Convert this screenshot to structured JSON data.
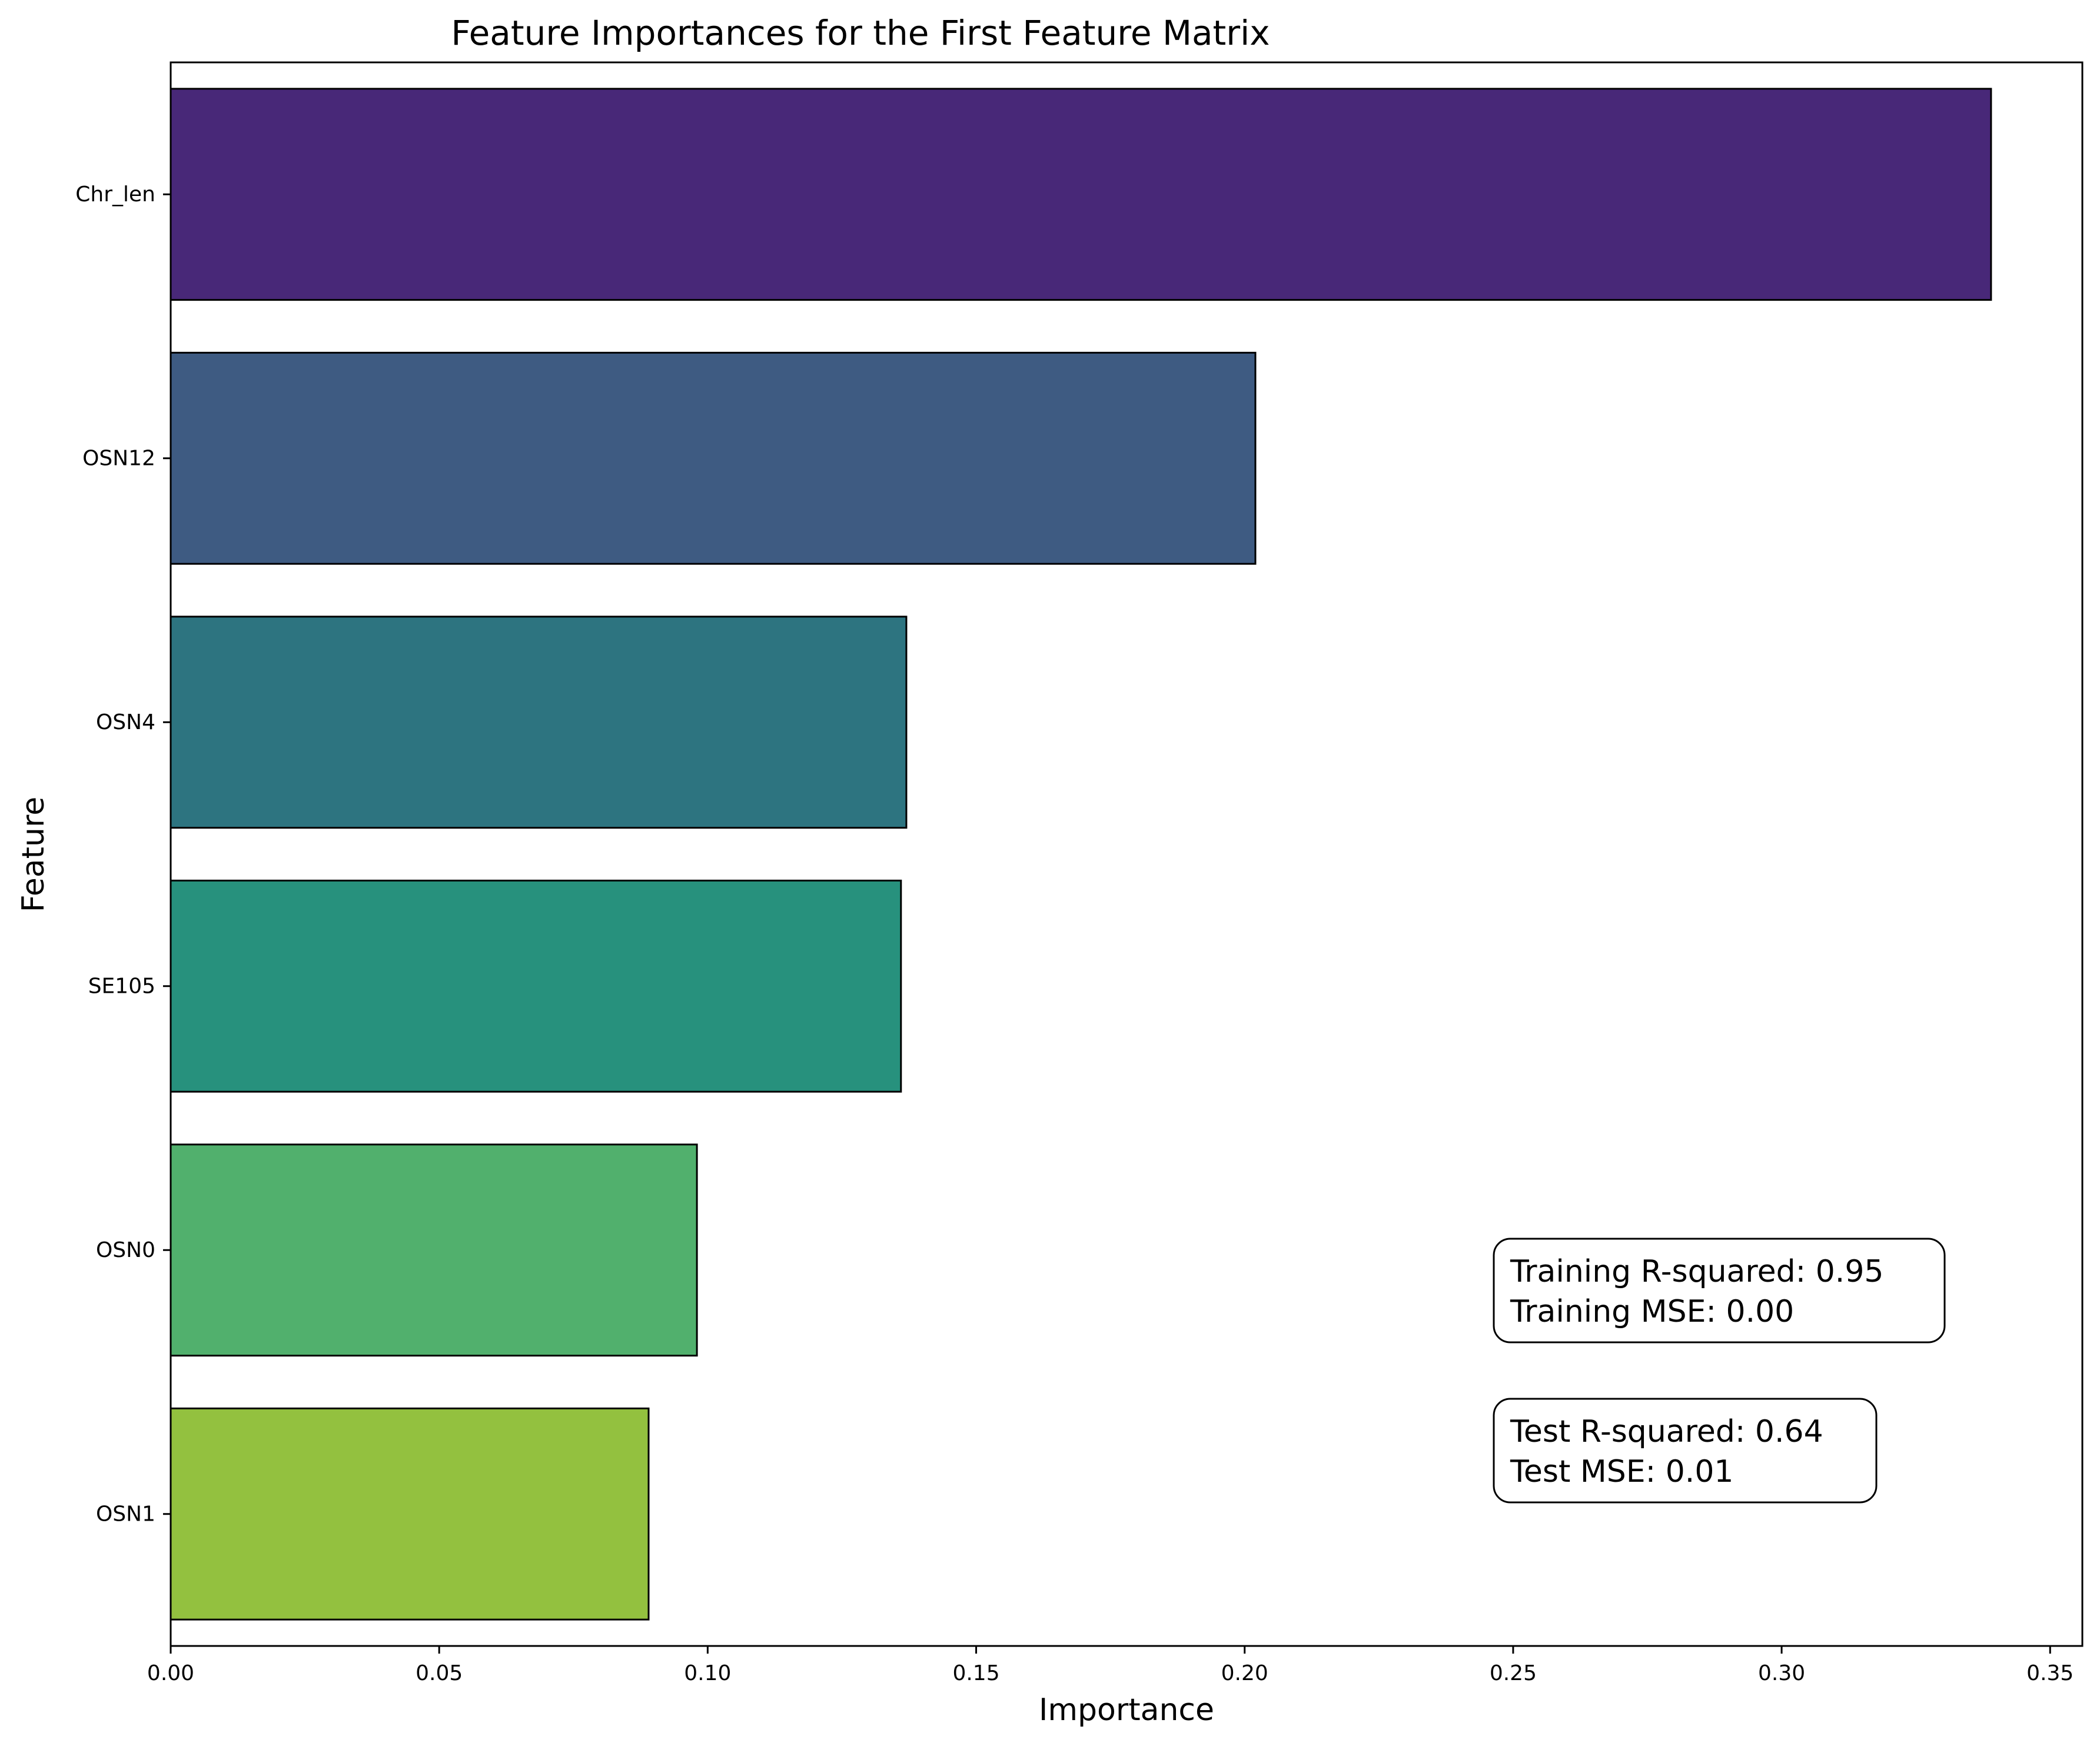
{
  "chart_data": {
    "type": "bar",
    "orientation": "horizontal",
    "title": "Feature Importances for the First Feature Matrix",
    "xlabel": "Importance",
    "ylabel": "Feature",
    "categories": [
      "Chr_len",
      "OSN12",
      "OSN4",
      "SE105",
      "OSN0",
      "OSN1"
    ],
    "values": [
      0.339,
      0.202,
      0.137,
      0.136,
      0.098,
      0.089
    ],
    "colors": [
      "#482878",
      "#3e5b82",
      "#2d7480",
      "#27917d",
      "#51b06d",
      "#93c13f"
    ],
    "xlim": [
      0,
      0.356
    ],
    "xticks": [
      "0.00",
      "0.05",
      "0.10",
      "0.15",
      "0.20",
      "0.25",
      "0.30",
      "0.35"
    ],
    "grid": false,
    "legend": null
  },
  "annotations": {
    "training": {
      "r2": "Training R-squared: 0.95",
      "mse": "Training MSE: 0.00"
    },
    "test": {
      "r2": "Test R-squared: 0.64",
      "mse": "Test MSE: 0.01"
    }
  }
}
